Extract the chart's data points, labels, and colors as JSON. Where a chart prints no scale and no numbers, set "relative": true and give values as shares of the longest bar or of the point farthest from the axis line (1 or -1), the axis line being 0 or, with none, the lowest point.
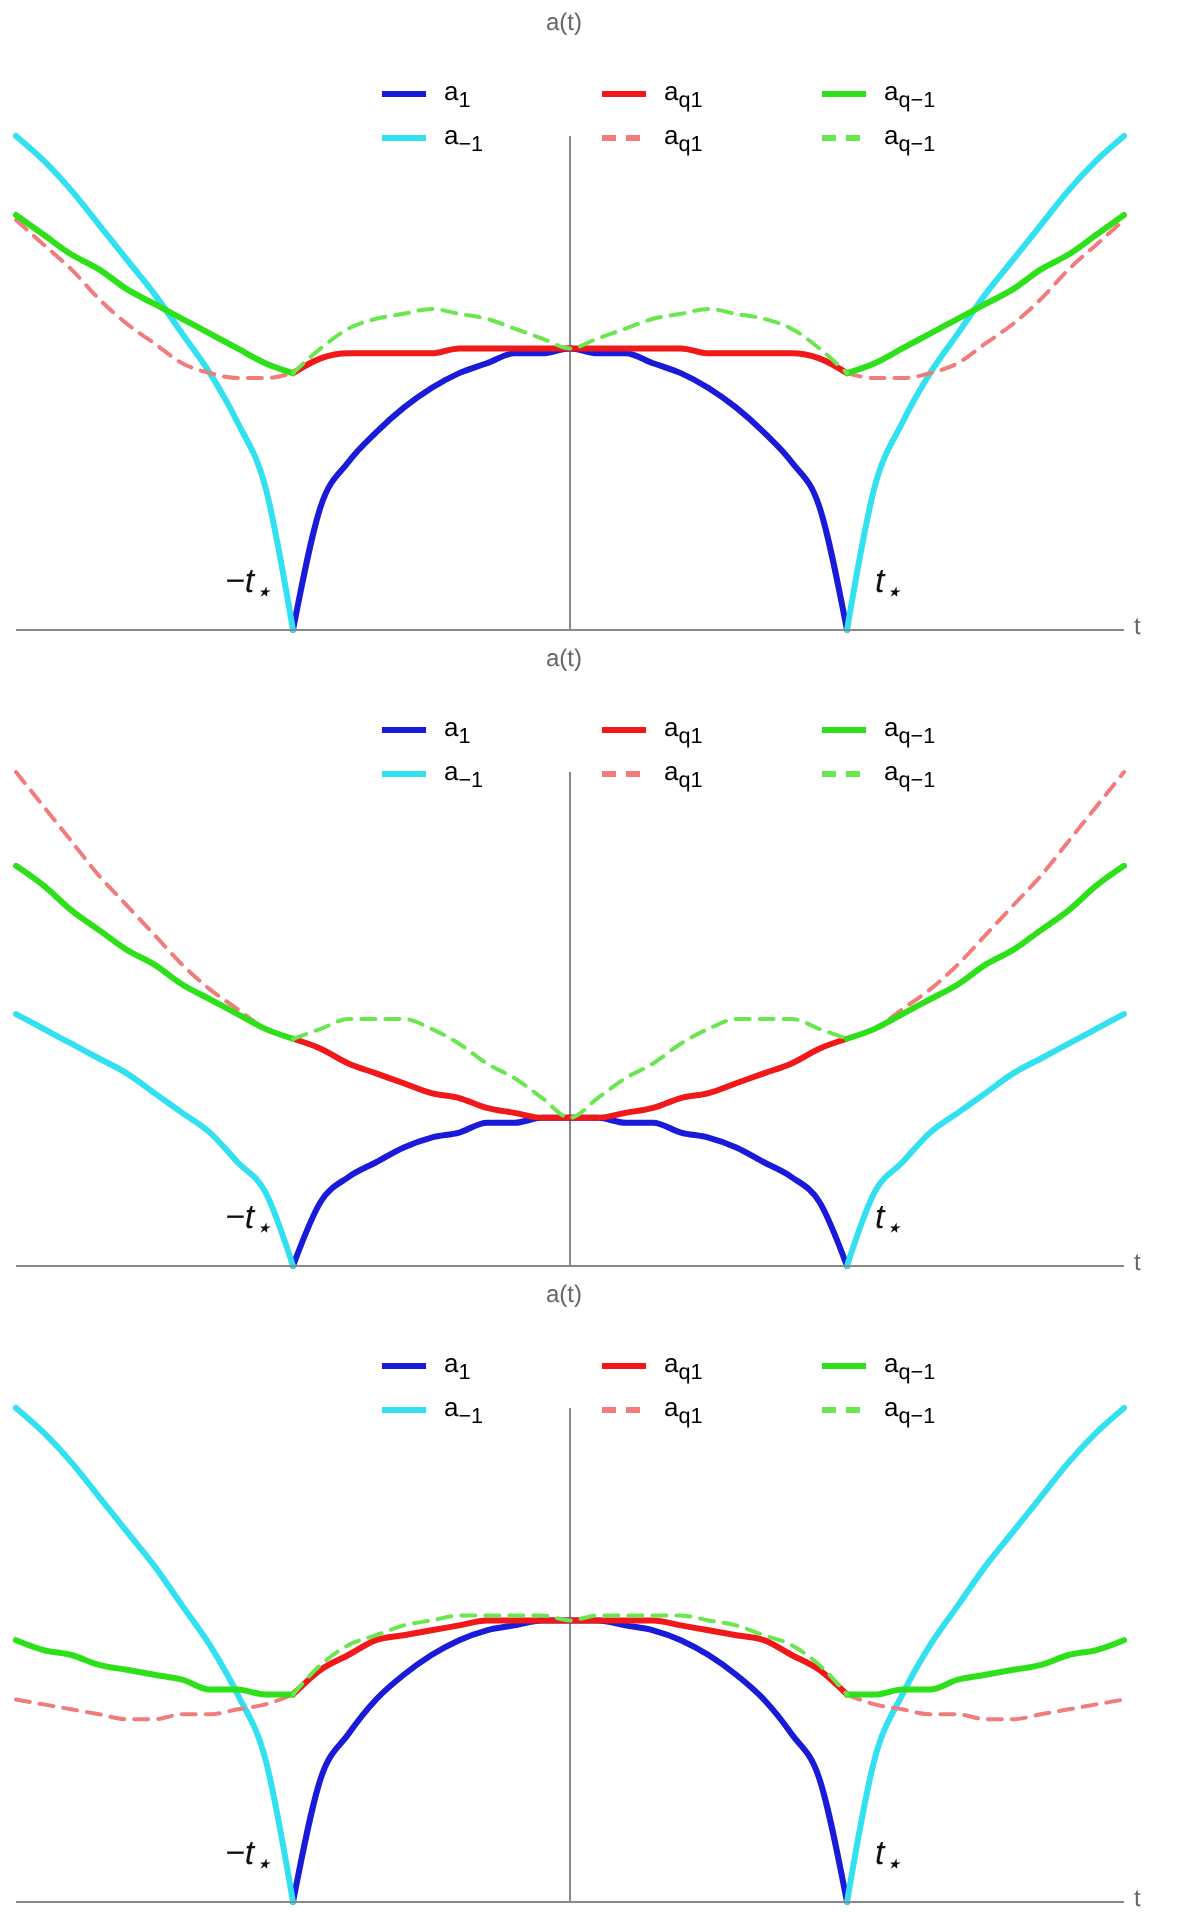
{
  "chart_data": [
    {
      "type": "line",
      "relative": true,
      "xlabel": "t",
      "ylabel": "a(t)",
      "legend": "top",
      "marker": "none",
      "annotations": [
        "−t$_{⋆}$",
        "t$_{⋆}$"
      ],
      "categories": [
        null,
        null,
        null,
        null,
        null,
        null,
        null,
        null,
        null,
        null,
        null,
        null,
        null,
        null,
        null,
        null,
        null,
        null,
        null,
        null,
        null,
        null,
        null,
        null,
        null,
        null,
        null,
        null,
        null,
        null,
        null,
        null,
        null,
        null,
        null,
        null,
        null,
        null,
        null,
        null,
        null
      ],
      "series": [
        {
          "name": "a$_{1}$",
          "color": "#1a1ad9",
          "line_style": "solid",
          "values": [
            null,
            null,
            null,
            null,
            null,
            null,
            null,
            null,
            null,
            null,
            0,
            0.25,
            0.34,
            0.4,
            0.45,
            0.49,
            0.52,
            0.54,
            0.56,
            0.56,
            0.57,
            0.56,
            0.56,
            0.54,
            0.52,
            0.49,
            0.45,
            0.4,
            0.34,
            0.25,
            0,
            null,
            null,
            null,
            null,
            null,
            null,
            null,
            null,
            null,
            null
          ]
        },
        {
          "name": "a$_{−1}$",
          "color": "#33e0f0",
          "line_style": "solid",
          "values": [
            1,
            0.95,
            0.89,
            0.82,
            0.75,
            0.68,
            0.6,
            0.52,
            0.42,
            0.29,
            0,
            null,
            null,
            null,
            null,
            null,
            null,
            null,
            null,
            null,
            null,
            null,
            null,
            null,
            null,
            null,
            null,
            null,
            null,
            null,
            0,
            0.29,
            0.42,
            0.52,
            0.6,
            0.68,
            0.75,
            0.82,
            0.89,
            0.95,
            1
          ]
        },
        {
          "name": "a$_{q1}$",
          "color": "#f01818",
          "line_style": "solid",
          "values": [
            null,
            null,
            null,
            null,
            null,
            null,
            null,
            null,
            null,
            null,
            0.52,
            0.55,
            0.56,
            0.56,
            0.56,
            0.56,
            0.57,
            0.57,
            0.57,
            0.57,
            0.57,
            0.57,
            0.57,
            0.57,
            0.57,
            0.56,
            0.56,
            0.56,
            0.56,
            0.55,
            0.52,
            null,
            null,
            null,
            null,
            null,
            null,
            null,
            null,
            null,
            null
          ]
        },
        {
          "name": "a$_{q1}$",
          "color": "#f27b7b",
          "line_style": "dashed",
          "values": [
            0.83,
            0.78,
            0.73,
            0.67,
            0.62,
            0.58,
            0.54,
            0.52,
            0.51,
            0.51,
            0.52,
            null,
            null,
            null,
            null,
            null,
            null,
            null,
            null,
            null,
            null,
            null,
            null,
            null,
            null,
            null,
            null,
            null,
            null,
            null,
            0.52,
            0.51,
            0.51,
            0.52,
            0.54,
            0.58,
            0.62,
            0.67,
            0.73,
            0.78,
            0.83
          ]
        },
        {
          "name": "a$_{q−1}$",
          "color": "#2ee01a",
          "line_style": "solid",
          "values": [
            0.84,
            0.8,
            0.76,
            0.73,
            0.69,
            0.66,
            0.63,
            0.6,
            0.57,
            0.54,
            0.52,
            null,
            null,
            null,
            null,
            null,
            null,
            null,
            null,
            null,
            null,
            null,
            null,
            null,
            null,
            null,
            null,
            null,
            null,
            null,
            0.52,
            0.54,
            0.57,
            0.6,
            0.63,
            0.66,
            0.69,
            0.73,
            0.76,
            0.8,
            0.84
          ]
        },
        {
          "name": "a$_{q−1}$",
          "color": "#6ae64f",
          "line_style": "dashed",
          "values": [
            null,
            null,
            null,
            null,
            null,
            null,
            null,
            null,
            null,
            null,
            0.52,
            0.57,
            0.61,
            0.63,
            0.64,
            0.65,
            0.64,
            0.63,
            0.61,
            0.59,
            0.57,
            0.59,
            0.61,
            0.63,
            0.64,
            0.65,
            0.64,
            0.63,
            0.61,
            0.57,
            0.52,
            null,
            null,
            null,
            null,
            null,
            null,
            null,
            null,
            null,
            null
          ]
        }
      ]
    },
    {
      "type": "line",
      "relative": true,
      "xlabel": "t",
      "ylabel": "a(t)",
      "legend": "top",
      "marker": "none",
      "annotations": [
        "−t$_{⋆}$",
        "t$_{⋆}$"
      ],
      "categories": [
        null,
        null,
        null,
        null,
        null,
        null,
        null,
        null,
        null,
        null,
        null,
        null,
        null,
        null,
        null,
        null,
        null,
        null,
        null,
        null,
        null,
        null,
        null,
        null,
        null,
        null,
        null,
        null,
        null,
        null,
        null,
        null,
        null,
        null,
        null,
        null,
        null,
        null,
        null,
        null,
        null
      ],
      "series": [
        {
          "name": "a$_{1}$",
          "color": "#1a1ad9",
          "line_style": "solid",
          "values": [
            null,
            null,
            null,
            null,
            null,
            null,
            null,
            null,
            null,
            null,
            0,
            0.13,
            0.18,
            0.21,
            0.24,
            0.26,
            0.27,
            0.29,
            0.29,
            0.3,
            0.3,
            0.3,
            0.29,
            0.29,
            0.27,
            0.26,
            0.24,
            0.21,
            0.18,
            0.13,
            0,
            null,
            null,
            null,
            null,
            null,
            null,
            null,
            null,
            null,
            null
          ]
        },
        {
          "name": "a$_{−1}$",
          "color": "#33e0f0",
          "line_style": "solid",
          "values": [
            0.51,
            0.48,
            0.45,
            0.42,
            0.39,
            0.35,
            0.31,
            0.27,
            0.21,
            0.15,
            0,
            null,
            null,
            null,
            null,
            null,
            null,
            null,
            null,
            null,
            null,
            null,
            null,
            null,
            null,
            null,
            null,
            null,
            null,
            null,
            0,
            0.15,
            0.21,
            0.27,
            0.31,
            0.35,
            0.39,
            0.42,
            0.45,
            0.48,
            0.51
          ]
        },
        {
          "name": "a$_{q1}$",
          "color": "#f01818",
          "line_style": "solid",
          "values": [
            null,
            null,
            null,
            null,
            null,
            null,
            null,
            null,
            null,
            null,
            0.46,
            0.44,
            0.41,
            0.39,
            0.37,
            0.35,
            0.34,
            0.32,
            0.31,
            0.3,
            0.3,
            0.3,
            0.31,
            0.32,
            0.34,
            0.35,
            0.37,
            0.39,
            0.41,
            0.44,
            0.46,
            null,
            null,
            null,
            null,
            null,
            null,
            null,
            null,
            null,
            null
          ]
        },
        {
          "name": "a$_{q1}$",
          "color": "#f27b7b",
          "line_style": "dashed",
          "values": [
            1,
            0.93,
            0.86,
            0.79,
            0.73,
            0.67,
            0.61,
            0.56,
            0.52,
            0.48,
            0.46,
            null,
            null,
            null,
            null,
            null,
            null,
            null,
            null,
            null,
            null,
            null,
            null,
            null,
            null,
            null,
            null,
            null,
            null,
            null,
            0.46,
            0.48,
            0.52,
            0.56,
            0.61,
            0.67,
            0.73,
            0.79,
            0.86,
            0.93,
            1
          ]
        },
        {
          "name": "a$_{q−1}$",
          "color": "#2ee01a",
          "line_style": "solid",
          "values": [
            0.81,
            0.77,
            0.72,
            0.68,
            0.64,
            0.61,
            0.57,
            0.54,
            0.51,
            0.48,
            0.46,
            null,
            null,
            null,
            null,
            null,
            null,
            null,
            null,
            null,
            null,
            null,
            null,
            null,
            null,
            null,
            null,
            null,
            null,
            null,
            0.46,
            0.48,
            0.51,
            0.54,
            0.57,
            0.61,
            0.64,
            0.68,
            0.72,
            0.77,
            0.81
          ]
        },
        {
          "name": "a$_{q−1}$",
          "color": "#6ae64f",
          "line_style": "dashed",
          "values": [
            null,
            null,
            null,
            null,
            null,
            null,
            null,
            null,
            null,
            null,
            0.46,
            0.48,
            0.5,
            0.5,
            0.5,
            0.48,
            0.45,
            0.41,
            0.38,
            0.34,
            0.3,
            0.34,
            0.38,
            0.41,
            0.45,
            0.48,
            0.5,
            0.5,
            0.5,
            0.48,
            0.46,
            null,
            null,
            null,
            null,
            null,
            null,
            null,
            null,
            null,
            null
          ]
        }
      ]
    },
    {
      "type": "line",
      "relative": true,
      "xlabel": "t",
      "ylabel": "a(t)",
      "legend": "top",
      "marker": "none",
      "annotations": [
        "−t$_{⋆}$",
        "t$_{⋆}$"
      ],
      "categories": [
        null,
        null,
        null,
        null,
        null,
        null,
        null,
        null,
        null,
        null,
        null,
        null,
        null,
        null,
        null,
        null,
        null,
        null,
        null,
        null,
        null,
        null,
        null,
        null,
        null,
        null,
        null,
        null,
        null,
        null,
        null,
        null,
        null,
        null,
        null,
        null,
        null,
        null,
        null,
        null,
        null
      ],
      "series": [
        {
          "name": "a$_{1}$",
          "color": "#1a1ad9",
          "line_style": "solid",
          "values": [
            null,
            null,
            null,
            null,
            null,
            null,
            null,
            null,
            null,
            null,
            0,
            0.25,
            0.34,
            0.41,
            0.46,
            0.5,
            0.53,
            0.55,
            0.56,
            0.57,
            0.57,
            0.57,
            0.56,
            0.55,
            0.53,
            0.5,
            0.46,
            0.41,
            0.34,
            0.25,
            0,
            null,
            null,
            null,
            null,
            null,
            null,
            null,
            null,
            null,
            null
          ]
        },
        {
          "name": "a$_{−1}$",
          "color": "#33e0f0",
          "line_style": "solid",
          "values": [
            1,
            0.95,
            0.89,
            0.82,
            0.75,
            0.68,
            0.6,
            0.52,
            0.42,
            0.29,
            0,
            null,
            null,
            null,
            null,
            null,
            null,
            null,
            null,
            null,
            null,
            null,
            null,
            null,
            null,
            null,
            null,
            null,
            null,
            null,
            0,
            0.29,
            0.42,
            0.52,
            0.6,
            0.68,
            0.75,
            0.82,
            0.89,
            0.95,
            1
          ]
        },
        {
          "name": "a$_{q1}$",
          "color": "#f01818",
          "line_style": "solid",
          "values": [
            null,
            null,
            null,
            null,
            null,
            null,
            null,
            null,
            null,
            null,
            0.42,
            0.47,
            0.5,
            0.53,
            0.54,
            0.55,
            0.56,
            0.57,
            0.57,
            0.57,
            0.57,
            0.57,
            0.57,
            0.57,
            0.56,
            0.55,
            0.54,
            0.53,
            0.5,
            0.47,
            0.42,
            null,
            null,
            null,
            null,
            null,
            null,
            null,
            null,
            null,
            null
          ]
        },
        {
          "name": "a$_{q1}$",
          "color": "#f27b7b",
          "line_style": "dashed",
          "values": [
            0.41,
            0.4,
            0.39,
            0.38,
            0.37,
            0.37,
            0.38,
            0.38,
            0.39,
            0.4,
            0.42,
            null,
            null,
            null,
            null,
            null,
            null,
            null,
            null,
            null,
            null,
            null,
            null,
            null,
            null,
            null,
            null,
            null,
            null,
            null,
            0.42,
            0.4,
            0.39,
            0.38,
            0.38,
            0.37,
            0.37,
            0.38,
            0.39,
            0.4,
            0.41
          ]
        },
        {
          "name": "a$_{q−1}$",
          "color": "#2ee01a",
          "line_style": "solid",
          "values": [
            0.53,
            0.51,
            0.5,
            0.48,
            0.47,
            0.46,
            0.45,
            0.43,
            0.43,
            0.42,
            0.42,
            null,
            null,
            null,
            null,
            null,
            null,
            null,
            null,
            null,
            null,
            null,
            null,
            null,
            null,
            null,
            null,
            null,
            null,
            null,
            0.42,
            0.42,
            0.43,
            0.43,
            0.45,
            0.46,
            0.47,
            0.48,
            0.5,
            0.51,
            0.53
          ]
        },
        {
          "name": "a$_{q−1}$",
          "color": "#6ae64f",
          "line_style": "dashed",
          "values": [
            null,
            null,
            null,
            null,
            null,
            null,
            null,
            null,
            null,
            null,
            0.42,
            0.48,
            0.52,
            0.54,
            0.56,
            0.57,
            0.58,
            0.58,
            0.58,
            0.58,
            0.57,
            0.58,
            0.58,
            0.58,
            0.58,
            0.57,
            0.56,
            0.54,
            0.52,
            0.48,
            0.42,
            null,
            null,
            null,
            null,
            null,
            null,
            null,
            null,
            null,
            null
          ]
        }
      ]
    }
  ]
}
